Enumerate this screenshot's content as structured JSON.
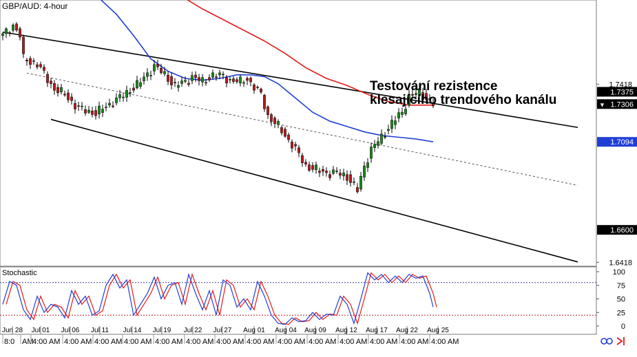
{
  "window": {
    "symbol_title": "GBP/AUD: 4-hour",
    "indicator_title": "Stochastic"
  },
  "annotation": {
    "line1": "Testování rezistence",
    "line2": "klesajícího trendového kanálu"
  },
  "colors": {
    "bull": "#1c8a1c",
    "bear": "#b21c1c",
    "ma_fast": "#1f3fd6",
    "ma_slow": "#e31a1a",
    "stoch_k": "#1f3fd6",
    "stoch_d": "#e31a1a",
    "price_tag": "#000000",
    "ma_tag": "#1f3fd6"
  },
  "icons": [
    "link-icon",
    "arrow-right-icon"
  ],
  "price_axis": {
    "ticks": [
      "1.7418",
      "1.6418"
    ],
    "tags": [
      {
        "value": 1.7375,
        "label": "1.7375",
        "kind": "price",
        "marker": ""
      },
      {
        "value": 1.7306,
        "label": "1.7306",
        "kind": "price",
        "marker": "▼"
      },
      {
        "value": 1.7094,
        "label": "1.7094",
        "kind": "blue",
        "marker": ""
      },
      {
        "value": 1.66,
        "label": "1.6600",
        "kind": "price",
        "marker": ""
      }
    ]
  },
  "stoch_axis": {
    "ticks": [
      "100",
      "75",
      "50",
      "25",
      "0"
    ],
    "overbought": 80,
    "oversold": 20
  },
  "x_axis": {
    "date_labels": [
      "Jun 28",
      "Jul 01",
      "Jul 06",
      "Jul 11",
      "Jul 14",
      "Jul 19",
      "Jul 22",
      "Jul 27",
      "Aug 01",
      "Aug 04",
      "Aug 09",
      "Aug 12",
      "Aug 17",
      "Aug 22",
      "Aug 25"
    ],
    "time_labels": [
      "8:0",
      "AM",
      "4:00 AM",
      "4:00 AM",
      "4:00 AM",
      "4:00 AM",
      "4:00 AM",
      "4:00 AM",
      "4:00 AM",
      "4:00 AM",
      "4:00 AM",
      "4:00 AM",
      "4:00 AM",
      "4:00 AM",
      "4:00 AM",
      "4:00 AM"
    ]
  },
  "chart_data": {
    "type": "candlestick",
    "pair": "GBP/AUD",
    "timeframe": "4-hour",
    "ylim": [
      1.64,
      1.789
    ],
    "close_path": [
      [
        0,
        1.769
      ],
      [
        3,
        1.775
      ],
      [
        5,
        1.769
      ],
      [
        6,
        1.756
      ],
      [
        10,
        1.753
      ],
      [
        15,
        1.739
      ],
      [
        18,
        1.736
      ],
      [
        22,
        1.728
      ],
      [
        27,
        1.7255
      ],
      [
        32,
        1.7318
      ],
      [
        35,
        1.7355
      ],
      [
        40,
        1.743
      ],
      [
        44,
        1.752
      ],
      [
        47,
        1.747
      ],
      [
        50,
        1.741
      ],
      [
        53,
        1.743
      ],
      [
        55,
        1.746
      ],
      [
        58,
        1.743
      ],
      [
        61,
        1.747
      ],
      [
        64,
        1.746
      ],
      [
        66,
        1.744
      ],
      [
        69,
        1.743
      ],
      [
        71,
        1.745
      ],
      [
        73,
        1.74
      ],
      [
        75,
        1.736
      ],
      [
        77,
        1.724
      ],
      [
        80,
        1.718
      ],
      [
        84,
        1.708
      ],
      [
        88,
        1.696
      ],
      [
        92,
        1.693
      ],
      [
        95,
        1.6918
      ],
      [
        97,
        1.692
      ],
      [
        100,
        1.69
      ],
      [
        103,
        1.682
      ],
      [
        105,
        1.696
      ],
      [
        107,
        1.705
      ],
      [
        110,
        1.712
      ],
      [
        113,
        1.72
      ],
      [
        116,
        1.726
      ],
      [
        118,
        1.735
      ],
      [
        121,
        1.737
      ],
      [
        123,
        1.734
      ],
      [
        125,
        1.7306
      ]
    ],
    "channel": {
      "upper": [
        [
          0,
          1.771
        ],
        [
          167,
          1.7175
        ]
      ],
      "middle": [
        [
          7,
          1.748
        ],
        [
          167,
          1.685
        ]
      ],
      "lower": [
        [
          14,
          1.722
        ],
        [
          167,
          1.642
        ]
      ]
    },
    "ma_blue": [
      [
        28,
        1.79
      ],
      [
        33,
        1.781
      ],
      [
        38,
        1.769
      ],
      [
        43,
        1.756
      ],
      [
        48,
        1.749
      ],
      [
        53,
        1.745
      ],
      [
        58,
        1.744
      ],
      [
        63,
        1.745
      ],
      [
        68,
        1.747
      ],
      [
        72,
        1.747
      ],
      [
        76,
        1.746
      ],
      [
        80,
        1.742
      ],
      [
        85,
        1.734
      ],
      [
        90,
        1.726
      ],
      [
        95,
        1.721
      ],
      [
        100,
        1.718
      ],
      [
        105,
        1.715
      ],
      [
        110,
        1.713
      ],
      [
        115,
        1.712
      ],
      [
        120,
        1.711
      ],
      [
        125,
        1.7094
      ]
    ],
    "ma_red": [
      [
        52,
        1.791
      ],
      [
        58,
        1.784
      ],
      [
        64,
        1.778
      ],
      [
        70,
        1.772
      ],
      [
        76,
        1.766
      ],
      [
        82,
        1.759
      ],
      [
        88,
        1.751
      ],
      [
        94,
        1.745
      ],
      [
        100,
        1.741
      ],
      [
        106,
        1.736
      ],
      [
        112,
        1.732
      ],
      [
        118,
        1.73
      ],
      [
        125,
        1.73
      ]
    ],
    "stochastic": {
      "k_path": [
        [
          0,
          40
        ],
        [
          2,
          82
        ],
        [
          4,
          75
        ],
        [
          6,
          30
        ],
        [
          8,
          12
        ],
        [
          10,
          55
        ],
        [
          12,
          25
        ],
        [
          14,
          40
        ],
        [
          16,
          35
        ],
        [
          18,
          15
        ],
        [
          20,
          65
        ],
        [
          22,
          40
        ],
        [
          24,
          55
        ],
        [
          26,
          20
        ],
        [
          28,
          28
        ],
        [
          30,
          75
        ],
        [
          32,
          95
        ],
        [
          34,
          70
        ],
        [
          36,
          85
        ],
        [
          38,
          20
        ],
        [
          40,
          40
        ],
        [
          42,
          60
        ],
        [
          44,
          90
        ],
        [
          46,
          50
        ],
        [
          48,
          75
        ],
        [
          50,
          80
        ],
        [
          52,
          40
        ],
        [
          54,
          95
        ],
        [
          56,
          60
        ],
        [
          58,
          30
        ],
        [
          60,
          65
        ],
        [
          62,
          20
        ],
        [
          64,
          85
        ],
        [
          66,
          75
        ],
        [
          68,
          35
        ],
        [
          70,
          50
        ],
        [
          72,
          30
        ],
        [
          74,
          82
        ],
        [
          76,
          55
        ],
        [
          78,
          20
        ],
        [
          80,
          5
        ],
        [
          82,
          3
        ],
        [
          84,
          15
        ],
        [
          86,
          8
        ],
        [
          88,
          10
        ],
        [
          90,
          25
        ],
        [
          92,
          12
        ],
        [
          94,
          22
        ],
        [
          96,
          20
        ],
        [
          98,
          55
        ],
        [
          100,
          40
        ],
        [
          102,
          5
        ],
        [
          104,
          50
        ],
        [
          106,
          98
        ],
        [
          108,
          85
        ],
        [
          110,
          95
        ],
        [
          112,
          80
        ],
        [
          114,
          92
        ],
        [
          116,
          80
        ],
        [
          118,
          95
        ],
        [
          120,
          88
        ],
        [
          122,
          92
        ],
        [
          124,
          60
        ],
        [
          125,
          35
        ]
      ],
      "d_offset": 1
    }
  }
}
